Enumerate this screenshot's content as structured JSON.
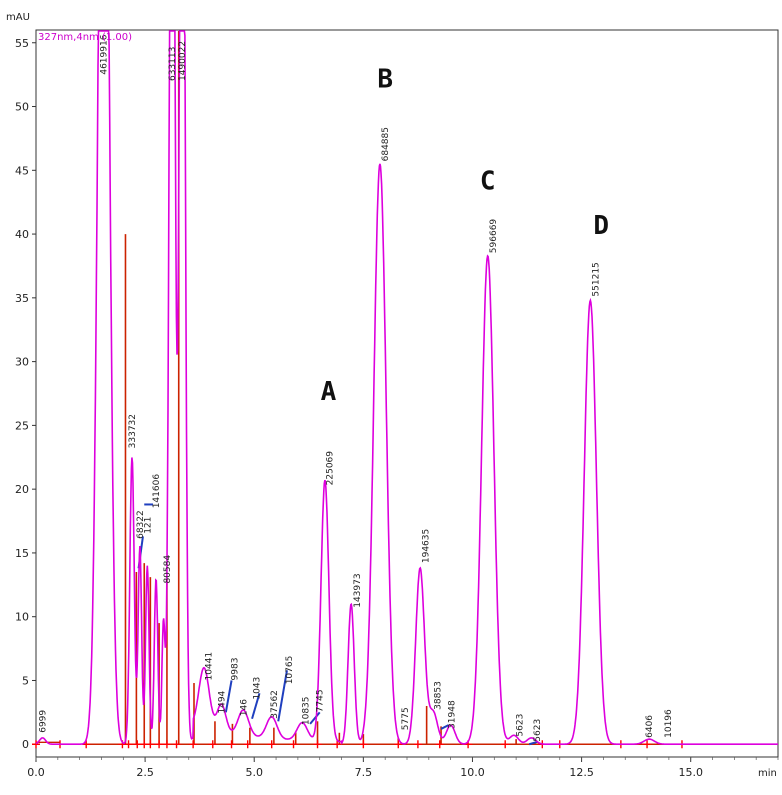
{
  "chart_data": {
    "type": "line",
    "y_unit": "mAU",
    "x_unit": "min",
    "legend": "327nm,4nm (1.00)",
    "xlim": [
      0,
      17.0
    ],
    "ylim": [
      -1.0,
      56.0
    ],
    "x_ticks": [
      "0.0",
      "2.5",
      "5.0",
      "7.5",
      "10.0",
      "12.5",
      "15.0"
    ],
    "y_ticks": [
      "0",
      "5",
      "10",
      "15",
      "20",
      "25",
      "30",
      "35",
      "40",
      "45",
      "50",
      "55"
    ],
    "trace_color": "#dd00dd",
    "baseline_color": "#cc2200",
    "marker_color": "#ff0000",
    "integration_color": "#1f3fbf",
    "peaks": [
      {
        "rt": 0.15,
        "height": 0.5,
        "width": 0.07
      },
      {
        "rt": 1.55,
        "height": 95,
        "width": 0.12
      },
      {
        "rt": 2.2,
        "height": 22.5,
        "width": 0.05
      },
      {
        "rt": 2.38,
        "height": 15.5,
        "width": 0.04
      },
      {
        "rt": 2.55,
        "height": 14.0,
        "width": 0.04
      },
      {
        "rt": 2.75,
        "height": 13.0,
        "width": 0.04
      },
      {
        "rt": 2.92,
        "height": 9.5,
        "width": 0.035
      },
      {
        "rt": 3.12,
        "height": 95,
        "width": 0.06
      },
      {
        "rt": 3.35,
        "height": 95,
        "width": 0.06
      },
      {
        "rt": 3.85,
        "height": 4.8,
        "width": 0.12
      },
      {
        "rt": 4.25,
        "height": 2.2,
        "width": 0.1
      },
      {
        "rt": 4.75,
        "height": 2.0,
        "width": 0.12
      },
      {
        "rt": 5.4,
        "height": 1.7,
        "width": 0.12
      },
      {
        "rt": 6.1,
        "height": 1.4,
        "width": 0.12
      },
      {
        "rt": 6.62,
        "height": 20.5,
        "width": 0.09
      },
      {
        "rt": 7.22,
        "height": 11.0,
        "width": 0.07
      },
      {
        "rt": 7.88,
        "height": 45.5,
        "width": 0.14
      },
      {
        "rt": 8.8,
        "height": 13.8,
        "width": 0.1
      },
      {
        "rt": 9.1,
        "height": 2.5,
        "width": 0.1
      },
      {
        "rt": 9.5,
        "height": 1.5,
        "width": 0.1
      },
      {
        "rt": 10.35,
        "height": 38.3,
        "width": 0.14
      },
      {
        "rt": 10.95,
        "height": 0.7,
        "width": 0.1
      },
      {
        "rt": 11.35,
        "height": 0.5,
        "width": 0.1
      },
      {
        "rt": 12.7,
        "height": 34.8,
        "width": 0.14
      },
      {
        "rt": 14.05,
        "height": 0.4,
        "width": 0.12
      }
    ],
    "peak_labels": [
      {
        "text": "6999",
        "rt": 0.15,
        "y": 0.9
      },
      {
        "text": "4619916",
        "rt": 1.55,
        "y": 52.5
      },
      {
        "text": "333732",
        "rt": 2.2,
        "y": 23.2
      },
      {
        "text": "68322",
        "rt": 2.38,
        "y": 16.1
      },
      {
        "text": "121",
        "rt": 2.55,
        "y": 16.5
      },
      {
        "text": "141606",
        "rt": 2.75,
        "y": 18.5
      },
      {
        "text": "80584",
        "rt": 3.0,
        "y": 12.6
      },
      {
        "text": "633113",
        "rt": 3.12,
        "y": 52.0
      },
      {
        "text": "1490022",
        "rt": 3.35,
        "y": 52.0
      },
      {
        "text": "10441",
        "rt": 3.95,
        "y": 5.0
      },
      {
        "text": "1494",
        "rt": 4.25,
        "y": 2.4
      },
      {
        "text": "9983",
        "rt": 4.55,
        "y": 5.0
      },
      {
        "text": "146",
        "rt": 4.75,
        "y": 2.2
      },
      {
        "text": "1043",
        "rt": 5.05,
        "y": 3.5
      },
      {
        "text": "37562",
        "rt": 5.45,
        "y": 2.0
      },
      {
        "text": "10765",
        "rt": 5.8,
        "y": 4.7
      },
      {
        "text": "10835",
        "rt": 6.18,
        "y": 1.5
      },
      {
        "text": "7745",
        "rt": 6.5,
        "y": 2.5
      },
      {
        "text": "225069",
        "rt": 6.72,
        "y": 20.3
      },
      {
        "text": "143973",
        "rt": 7.35,
        "y": 10.7
      },
      {
        "text": "684885",
        "rt": 8.0,
        "y": 45.7
      },
      {
        "text": "5775",
        "rt": 8.45,
        "y": 1.1
      },
      {
        "text": "194635",
        "rt": 8.92,
        "y": 14.2
      },
      {
        "text": "38853",
        "rt": 9.2,
        "y": 2.7
      },
      {
        "text": "31948",
        "rt": 9.52,
        "y": 1.2
      },
      {
        "text": "596669",
        "rt": 10.47,
        "y": 38.5
      },
      {
        "text": "5623",
        "rt": 11.08,
        "y": 0.6
      },
      {
        "text": "5623",
        "rt": 11.48,
        "y": 0.2
      },
      {
        "text": "551215",
        "rt": 12.82,
        "y": 35.1
      },
      {
        "text": "6406",
        "rt": 14.05,
        "y": 0.5
      },
      {
        "text": "10196",
        "rt": 14.48,
        "y": 0.5
      }
    ],
    "letters": [
      {
        "text": "A",
        "rt": 6.7,
        "y": 27.0
      },
      {
        "text": "B",
        "rt": 8.0,
        "y": 51.5
      },
      {
        "text": "C",
        "rt": 10.35,
        "y": 43.5
      },
      {
        "text": "D",
        "rt": 12.95,
        "y": 40.0
      }
    ],
    "baseline_markers": [
      0.0,
      0.55,
      1.15,
      1.98,
      2.12,
      2.32,
      2.48,
      2.62,
      2.82,
      3.0,
      3.22,
      3.6,
      4.05,
      4.48,
      4.85,
      5.4,
      5.9,
      6.45,
      6.9,
      7.5,
      8.3,
      8.75,
      9.25,
      9.9,
      10.75,
      11.6,
      12.0,
      13.4,
      14.0,
      14.8
    ],
    "integration_marks": [
      {
        "rt0": 2.35,
        "y0": 13.8,
        "rt1": 2.45,
        "y1": 16.3
      },
      {
        "rt0": 2.48,
        "y0": 18.8,
        "rt1": 2.68,
        "y1": 18.8
      },
      {
        "rt0": 4.35,
        "y0": 2.5,
        "rt1": 4.48,
        "y1": 5.0
      },
      {
        "rt0": 4.95,
        "y0": 2.0,
        "rt1": 5.12,
        "y1": 4.0
      },
      {
        "rt0": 5.55,
        "y0": 1.8,
        "rt1": 5.75,
        "y1": 5.8
      },
      {
        "rt0": 6.28,
        "y0": 1.6,
        "rt1": 6.5,
        "y1": 2.5
      },
      {
        "rt0": 9.28,
        "y0": 1.2,
        "rt1": 9.45,
        "y1": 1.5
      },
      {
        "rt0": 11.3,
        "y0": 0.0,
        "rt1": 11.5,
        "y1": 0.2
      }
    ]
  }
}
